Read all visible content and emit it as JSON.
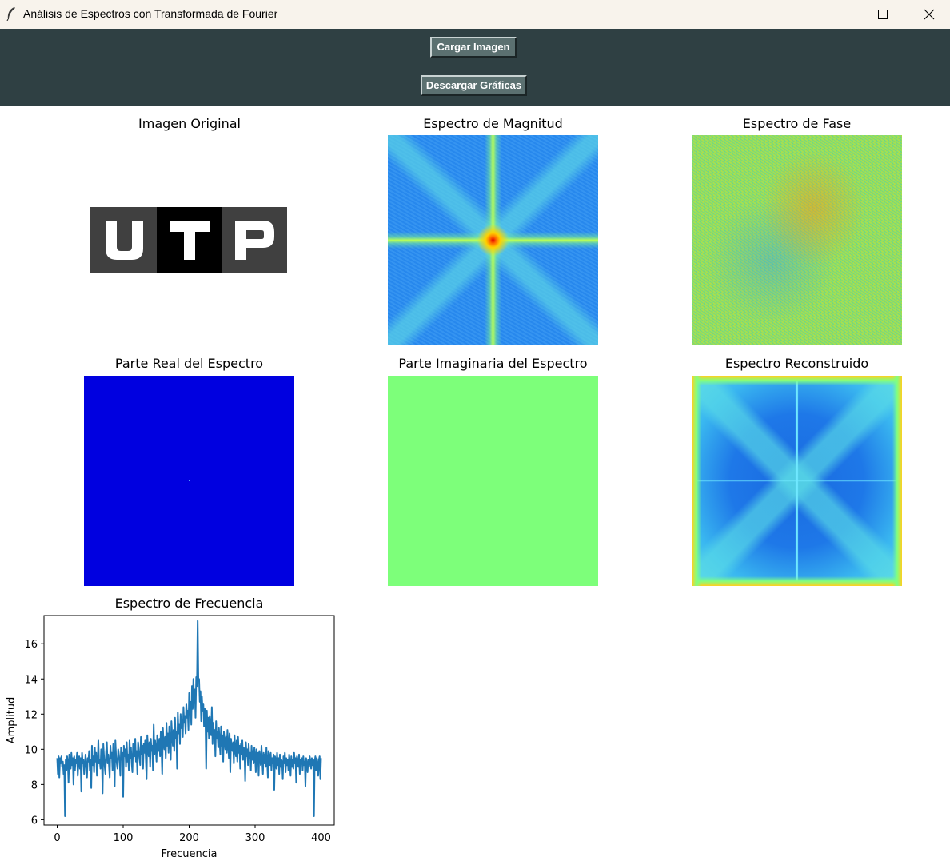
{
  "window": {
    "title": "Análisis de Espectros con Transformada de Fourier",
    "icon": "feather-icon"
  },
  "toolbar": {
    "load_label": "Cargar Imagen",
    "download_label": "Descargar Gráficas"
  },
  "panels": {
    "original": "Imagen Original",
    "magnitude": "Espectro de Magnitud",
    "phase": "Espectro de Fase",
    "real": "Parte Real del Espectro",
    "imag": "Parte Imaginaria del Espectro",
    "recon": "Espectro Reconstruido",
    "frequency": "Espectro de Frecuencia"
  },
  "logo": {
    "letters": [
      "U",
      "T",
      "P"
    ]
  },
  "colors": {
    "toolbar_bg": "#2f4043",
    "button_bg": "#5b7070",
    "line": "#1f77b4"
  },
  "chart_data": {
    "type": "line",
    "title": "Espectro de Frecuencia",
    "xlabel": "Frecuencia",
    "ylabel": "Amplitud",
    "xlim": [
      -20,
      420
    ],
    "ylim": [
      5.7,
      17.6
    ],
    "xticks": [
      0,
      100,
      200,
      300,
      400
    ],
    "yticks": [
      6,
      8,
      10,
      12,
      14,
      16
    ],
    "series": [
      {
        "values": [
          9.5,
          8.6,
          9.6,
          8.4,
          9.5,
          9.2,
          9.6,
          9.0,
          9.3,
          8.6,
          9.1,
          6.2,
          9.4,
          8.8,
          9.6,
          9.3,
          8.1,
          9.7,
          9.4,
          8.9,
          9.8,
          9.1,
          9.5,
          8.0,
          9.6,
          8.8,
          9.4,
          9.2,
          9.8,
          8.5,
          9.3,
          9.6,
          8.9,
          9.5,
          7.6,
          9.8,
          9.2,
          9.4,
          8.6,
          9.1,
          9.7,
          9.0,
          8.4,
          9.5,
          9.3,
          9.9,
          8.8,
          9.4,
          7.8,
          10.2,
          9.1,
          9.6,
          8.7,
          10.1,
          9.3,
          9.8,
          8.5,
          9.0,
          10.5,
          9.2,
          9.4,
          8.9,
          10.0,
          9.5,
          7.5,
          10.3,
          9.6,
          9.0,
          8.6,
          9.9,
          10.4,
          9.2,
          9.7,
          9.1,
          8.4,
          10.2,
          9.5,
          9.8,
          8.8,
          10.3,
          9.4,
          7.9,
          10.5,
          9.6,
          9.2,
          8.9,
          10.0,
          9.7,
          9.3,
          8.5,
          10.1,
          9.4,
          9.8,
          7.3,
          10.2,
          9.6,
          10.0,
          9.0,
          10.4,
          9.3,
          9.7,
          8.8,
          10.5,
          9.5,
          10.1,
          9.2,
          8.7,
          10.3,
          9.8,
          9.6,
          10.6,
          9.3,
          9.9,
          8.6,
          10.4,
          10.0,
          9.5,
          9.1,
          10.7,
          9.7,
          10.2,
          8.9,
          10.3,
          9.8,
          10.5,
          9.4,
          8.3,
          10.8,
          10.1,
          9.6,
          10.4,
          9.0,
          10.6,
          9.9,
          10.2,
          8.8,
          11.4,
          9.7,
          10.5,
          10.0,
          9.3,
          10.8,
          10.3,
          9.9,
          10.6,
          9.6,
          11.0,
          10.1,
          8.6,
          11.2,
          10.4,
          10.0,
          10.7,
          9.5,
          11.5,
          10.2,
          10.9,
          9.8,
          11.3,
          10.5,
          9.4,
          11.6,
          10.8,
          10.2,
          11.1,
          9.9,
          11.8,
          10.6,
          11.0,
          8.9,
          12.1,
          10.9,
          11.4,
          10.3,
          12.0,
          11.2,
          11.7,
          10.7,
          12.4,
          11.5,
          11.9,
          10.9,
          12.6,
          11.8,
          12.2,
          11.1,
          13.2,
          12.0,
          12.7,
          11.4,
          13.6,
          12.3,
          14.0,
          12.9,
          13.4,
          11.8,
          14.1,
          13.6,
          17.3,
          13.9,
          14.0,
          12.7,
          13.3,
          11.6,
          13.0,
          12.2,
          12.6,
          11.3,
          12.3,
          11.7,
          8.9,
          12.2,
          11.0,
          11.8,
          10.6,
          11.9,
          11.3,
          10.8,
          12.4,
          10.3,
          11.5,
          10.9,
          11.1,
          9.6,
          11.6,
          10.6,
          11.0,
          10.1,
          11.2,
          10.4,
          9.7,
          11.3,
          10.2,
          10.8,
          9.3,
          11.0,
          10.5,
          10.0,
          10.7,
          9.8,
          11.1,
          10.3,
          9.5,
          10.9,
          8.7,
          10.6,
          10.1,
          9.9,
          10.4,
          9.2,
          10.8,
          10.0,
          9.6,
          10.5,
          9.3,
          10.7,
          9.8,
          10.2,
          8.9,
          10.3,
          9.7,
          10.5,
          9.4,
          10.1,
          9.9,
          8.2,
          10.4,
          9.6,
          10.0,
          9.1,
          10.3,
          9.5,
          9.8,
          8.8,
          10.2,
          9.4,
          9.9,
          9.2,
          10.1,
          9.6,
          8.7,
          10.0,
          9.3,
          9.8,
          8.5,
          9.9,
          9.5,
          9.1,
          10.2,
          9.4,
          8.6,
          9.8,
          9.2,
          9.7,
          9.0,
          10.1,
          9.3,
          8.4,
          9.9,
          9.6,
          9.1,
          9.8,
          8.8,
          9.5,
          9.2,
          9.7,
          7.7,
          9.6,
          9.4,
          8.9,
          9.8,
          9.1,
          9.5,
          8.6,
          9.7,
          9.0,
          9.4,
          9.3,
          8.3,
          9.6,
          9.2,
          9.8,
          8.7,
          9.5,
          9.1,
          9.4,
          8.8,
          9.7,
          9.3,
          8.5,
          9.6,
          9.0,
          9.4,
          8.9,
          9.8,
          9.2,
          9.5,
          8.1,
          9.6,
          9.3,
          9.0,
          9.7,
          8.6,
          9.4,
          9.2,
          9.5,
          8.8,
          9.6,
          9.1,
          9.3,
          7.9,
          9.5,
          9.2,
          8.7,
          9.4,
          9.0,
          9.6,
          9.3,
          8.9,
          9.5,
          9.1,
          9.4,
          6.2,
          9.3,
          9.6,
          8.8,
          9.5,
          9.2,
          8.5,
          9.4,
          9.6,
          8.3,
          9.5
        ]
      }
    ]
  }
}
